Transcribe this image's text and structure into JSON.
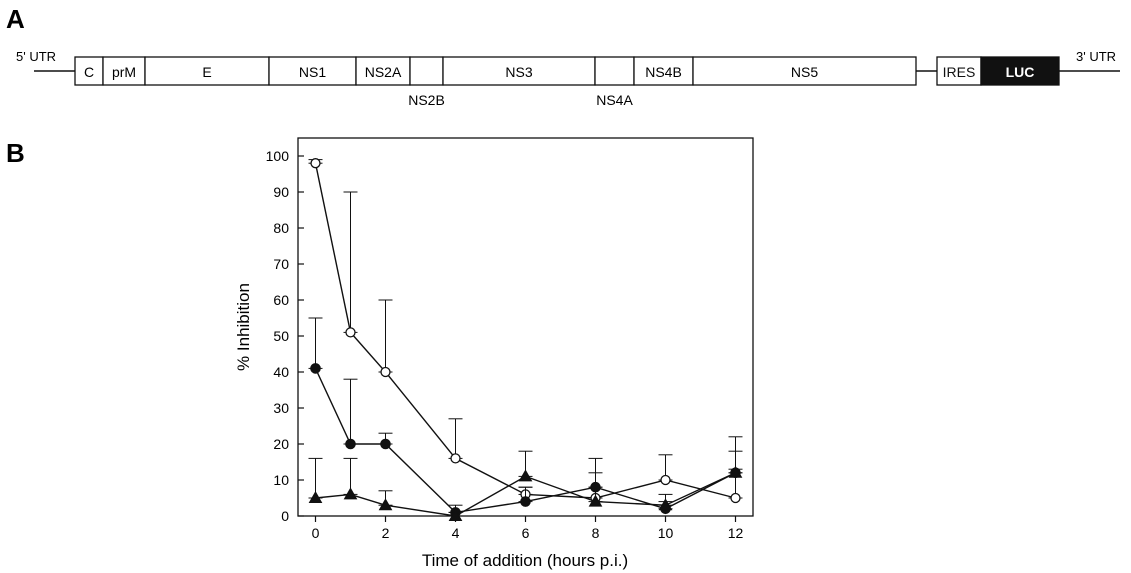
{
  "panel_a": {
    "letter": "A",
    "utr5": "5' UTR",
    "utr3": "3' UTR",
    "genes": [
      {
        "label": "C"
      },
      {
        "label": "prM"
      },
      {
        "label": "E"
      },
      {
        "label": "NS1"
      },
      {
        "label": "NS2A"
      },
      {
        "label": "NS2B"
      },
      {
        "label": "NS3"
      },
      {
        "label": "NS4A"
      },
      {
        "label": "NS4B"
      },
      {
        "label": "NS5"
      }
    ],
    "reporter": [
      {
        "label": "IRES"
      },
      {
        "label": "LUC",
        "fill": "#111111",
        "text_color": "#ffffff"
      }
    ]
  },
  "panel_b": {
    "letter": "B"
  },
  "chart_data": {
    "type": "line",
    "title": "",
    "xlabel": "Time of addition (hours p.i.)",
    "ylabel": "% Inhibition",
    "xlim": [
      -0.5,
      12.5
    ],
    "ylim": [
      0,
      105
    ],
    "xticks": [
      0,
      2,
      4,
      6,
      8,
      10,
      12
    ],
    "yticks": [
      0,
      10,
      20,
      30,
      40,
      50,
      60,
      70,
      80,
      90,
      100
    ],
    "x": [
      0,
      1,
      2,
      4,
      6,
      8,
      10,
      12
    ],
    "grid": false,
    "legend": "none",
    "series": [
      {
        "marker": "open-circle",
        "values": [
          98,
          51,
          40,
          16,
          6,
          5,
          10,
          5
        ],
        "error_upper": [
          99,
          90,
          60,
          27,
          8,
          8,
          17,
          13
        ]
      },
      {
        "marker": "filled-circle",
        "values": [
          41,
          20,
          20,
          1,
          4,
          8,
          2,
          12
        ],
        "error_upper": [
          55,
          38,
          23,
          3,
          8,
          16,
          6,
          22
        ]
      },
      {
        "marker": "filled-triangle",
        "values": [
          5,
          6,
          3,
          0,
          11,
          4,
          3,
          12
        ],
        "error_upper": [
          16,
          16,
          7,
          1,
          18,
          12,
          4,
          18
        ]
      }
    ]
  }
}
